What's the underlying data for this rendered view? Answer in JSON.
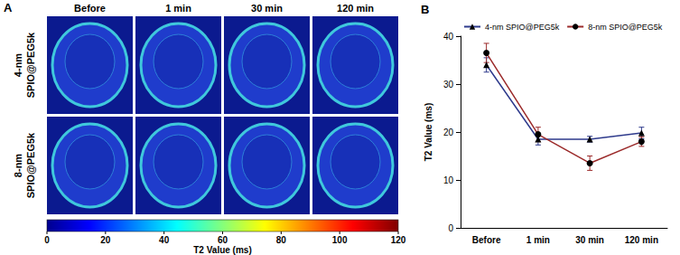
{
  "chart_data": {
    "type": "line",
    "annotations": [
      "B"
    ],
    "y_label": "T2 Value (ms)",
    "categories": [
      "Before",
      "1 min",
      "30 min",
      "120 min"
    ],
    "series": [
      {
        "name": "4-nm SPIO@PEG5k",
        "color": "#2e3a8c",
        "marker": "triangle",
        "values": [
          34,
          18.5,
          18.5,
          19.8
        ],
        "errors": [
          1.5,
          1.2,
          0.6,
          1.2
        ]
      },
      {
        "name": "8-nm SPIO@PEG5k",
        "color": "#9b2a2a",
        "marker": "circle",
        "values": [
          36.5,
          19.5,
          13.5,
          18
        ],
        "errors": [
          2,
          1.5,
          1.5,
          1
        ]
      }
    ],
    "ylim": [
      0,
      40
    ],
    "yticks": [
      0,
      10,
      20,
      30,
      40
    ],
    "grid": false,
    "legend": "top"
  },
  "image_panel": {
    "label": "A",
    "columns": [
      "Before",
      "1 min",
      "30 min",
      "120 min"
    ],
    "rows": [
      "4-nm SPIO@PEG5k",
      "8-nm SPIO@PEG5k"
    ],
    "colorbar": {
      "label": "T2 Value (ms)",
      "range": [
        0,
        120
      ],
      "ticks": [
        0,
        20,
        40,
        60,
        80,
        100,
        120
      ]
    }
  }
}
